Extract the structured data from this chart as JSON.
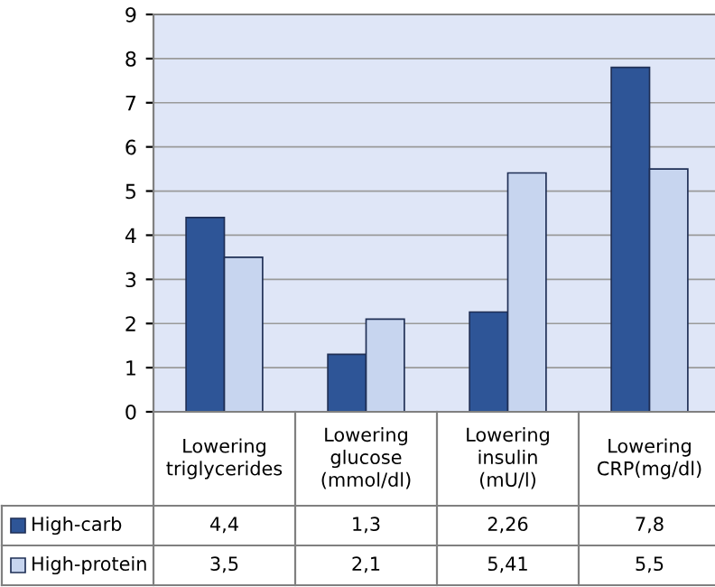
{
  "chart_data": {
    "type": "bar",
    "categories": [
      "Lowering\ntriglycerides",
      "Lowering\nglucose\n(mmol/dl)",
      "Lowering\ninsulin\n(mU/l)",
      "Lowering\nCRP(mg/dl)"
    ],
    "series": [
      {
        "name": "High-carb",
        "color": "#2e5597",
        "values": [
          4.4,
          1.3,
          2.26,
          7.8
        ],
        "value_labels": [
          "4,4",
          "1,3",
          "2,26",
          "7,8"
        ]
      },
      {
        "name": "High-protein",
        "color": "#c7d5ef",
        "values": [
          3.5,
          2.1,
          5.41,
          5.5
        ],
        "value_labels": [
          "3,5",
          "2,1",
          "5,41",
          "5,5"
        ]
      }
    ],
    "ylim": [
      0,
      9
    ],
    "yticks": [
      0,
      1,
      2,
      3,
      4,
      5,
      6,
      7,
      8,
      9
    ],
    "grid": "y",
    "legend": "bottom"
  }
}
